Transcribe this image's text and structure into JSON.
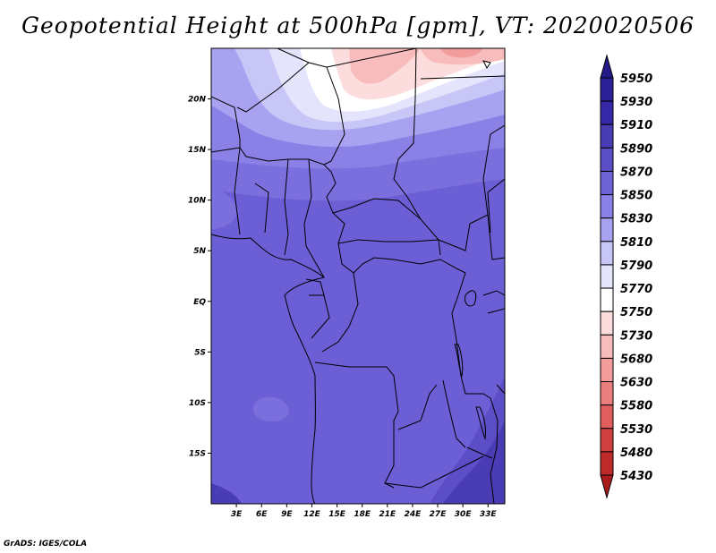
{
  "title": "Geopotential Height at 500hPa [gpm], VT: 2020020506",
  "credit": "GrADS: IGES/COLA",
  "map": {
    "lon_range": [
      0,
      35
    ],
    "lat_range": [
      -20,
      25
    ],
    "x_ticks": [
      {
        "lon": 3,
        "label": "3E"
      },
      {
        "lon": 6,
        "label": "6E"
      },
      {
        "lon": 9,
        "label": "9E"
      },
      {
        "lon": 12,
        "label": "12E"
      },
      {
        "lon": 15,
        "label": "15E"
      },
      {
        "lon": 18,
        "label": "18E"
      },
      {
        "lon": 21,
        "label": "21E"
      },
      {
        "lon": 24,
        "label": "24E"
      },
      {
        "lon": 27,
        "label": "27E"
      },
      {
        "lon": 30,
        "label": "30E"
      },
      {
        "lon": 33,
        "label": "33E"
      }
    ],
    "y_ticks": [
      {
        "lat": 20,
        "label": "20N"
      },
      {
        "lat": 15,
        "label": "15N"
      },
      {
        "lat": 10,
        "label": "10N"
      },
      {
        "lat": 5,
        "label": "5N"
      },
      {
        "lat": 0,
        "label": "EQ"
      },
      {
        "lat": -5,
        "label": "5S"
      },
      {
        "lat": -10,
        "label": "10S"
      },
      {
        "lat": -15,
        "label": "15S"
      }
    ]
  },
  "colorbar": {
    "levels": [
      "5950",
      "5930",
      "5910",
      "5890",
      "5870",
      "5850",
      "5830",
      "5810",
      "5790",
      "5770",
      "5750",
      "5730",
      "5680",
      "5630",
      "5580",
      "5530",
      "5480",
      "5430"
    ],
    "colors": {
      "5950_top": "#251a8a",
      "5930_5950": "#2c2099",
      "5910_5930": "#3628a6",
      "5890_5910": "#4a3cb5",
      "5870_5890": "#5c4ec6",
      "5850_5870": "#6f61d6",
      "5830_5850": "#8a80e6",
      "5810_5830": "#a8a2f0",
      "5790_5810": "#c8c6f7",
      "5770_5790": "#e4e4fc",
      "5750_5770": "#ffffff",
      "5730_5750": "#fcdcdc",
      "5680_5730": "#f8bcbc",
      "5630_5680": "#f29c9c",
      "5580_5630": "#ea7e7e",
      "5530_5580": "#e05e5e",
      "5480_5530": "#d04040",
      "5430_5480": "#bc2a2a",
      "below_5430": "#a81c1c"
    }
  }
}
